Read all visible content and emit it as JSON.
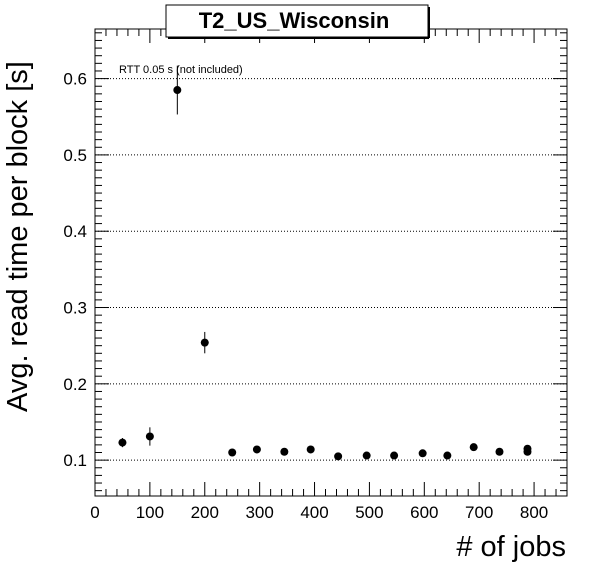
{
  "chart_data": {
    "type": "scatter",
    "title": "T2_US_Wisconsin",
    "xlabel": "# of jobs",
    "ylabel": "Avg. read time per block [s]",
    "annotation": "RTT 0.05 s (not included)",
    "xlim": [
      0,
      860
    ],
    "ylim": [
      0.053,
      0.665
    ],
    "x_ticks": [
      0,
      100,
      200,
      300,
      400,
      500,
      600,
      700,
      800
    ],
    "y_ticks": [
      0.1,
      0.2,
      0.3,
      0.4,
      0.5,
      0.6
    ],
    "x_tick_labels": [
      "0",
      "100",
      "200",
      "300",
      "400",
      "500",
      "600",
      "700",
      "800"
    ],
    "y_tick_labels": [
      "0.1",
      "0.2",
      "0.3",
      "0.4",
      "0.5",
      "0.6"
    ],
    "grid": {
      "horizontal": true,
      "vertical": false,
      "style": "dotted"
    },
    "marker_color": "#000000",
    "series": [
      {
        "points": [
          {
            "x": 50,
            "y": 0.123,
            "err": 0.006
          },
          {
            "x": 100,
            "y": 0.131,
            "err": 0.012
          },
          {
            "x": 150,
            "y": 0.585,
            "err": 0.032
          },
          {
            "x": 200,
            "y": 0.254,
            "err": 0.014
          },
          {
            "x": 250,
            "y": 0.11,
            "err": 0.003
          },
          {
            "x": 295,
            "y": 0.114,
            "err": 0.003
          },
          {
            "x": 345,
            "y": 0.111,
            "err": 0.003
          },
          {
            "x": 393,
            "y": 0.114,
            "err": 0.003
          },
          {
            "x": 443,
            "y": 0.105,
            "err": 0.002
          },
          {
            "x": 495,
            "y": 0.106,
            "err": 0.002
          },
          {
            "x": 545,
            "y": 0.106,
            "err": 0.002
          },
          {
            "x": 597,
            "y": 0.109,
            "err": 0.002
          },
          {
            "x": 642,
            "y": 0.106,
            "err": 0.002
          },
          {
            "x": 690,
            "y": 0.117,
            "err": 0.003
          },
          {
            "x": 737,
            "y": 0.111,
            "err": 0.003
          },
          {
            "x": 788,
            "y": 0.115,
            "err": 0.003
          },
          {
            "x": 788,
            "y": 0.111,
            "err": 0.003
          }
        ]
      }
    ]
  }
}
